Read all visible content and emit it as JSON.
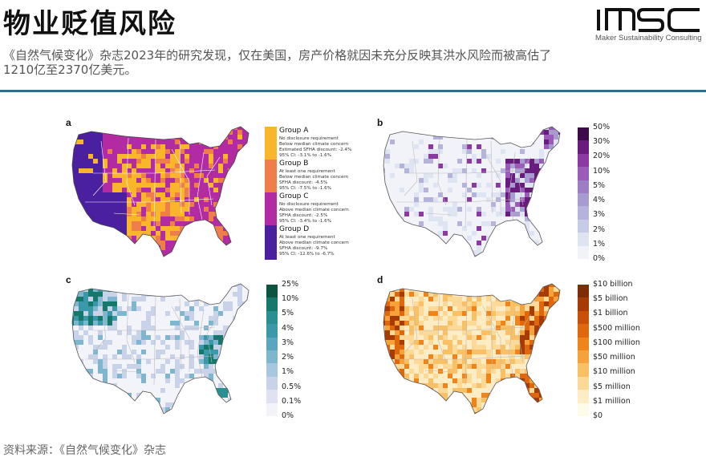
{
  "title": "物业贬值风险",
  "brand": {
    "logo_text": "MSC",
    "tagline": "Maker Sustainability Consulting"
  },
  "subtitle": "《自然气候变化》杂志2023年的研究发现，仅在美国，房产价格就因未充分反映其洪水风险而被高估了1210亿至2370亿美元。",
  "source": "资料来源：《自然气候变化》杂志",
  "panels": {
    "a": {
      "letter": "a",
      "groups": [
        {
          "name": "Group A",
          "color": "#f9b62b",
          "lines": [
            "No disclosure requirement",
            "Below median climate concern",
            "Estimated SFHA discount: -2.4%",
            "95% CI: -3.1% to -1.6%"
          ]
        },
        {
          "name": "Group B",
          "color": "#f07e4a",
          "lines": [
            "At least one requirement",
            "Below median climate concern",
            "SFHA discount: -4.5%",
            "95% CI: -7.5% to -1.6%"
          ]
        },
        {
          "name": "Group C",
          "color": "#b32ba3",
          "lines": [
            "No disclosure requirement",
            "Above median climate concern",
            "SFHA discount: -2.5%",
            "95% CI: -3.4% to -1.6%"
          ]
        },
        {
          "name": "Group D",
          "color": "#4a1fa0",
          "lines": [
            "At least one requirement",
            "Above median climate concern",
            "SFHA discount: -9.7%",
            "95% CI: -12.6% to -6.7%"
          ]
        }
      ]
    },
    "b": {
      "letter": "b",
      "ticks": [
        "50%",
        "30%",
        "20%",
        "10%",
        "5%",
        "4%",
        "3%",
        "2%",
        "1%",
        "0%"
      ],
      "colors": [
        "#3f0a4a",
        "#6a1b7e",
        "#8a3aa0",
        "#9b5bb8",
        "#9d7ec4",
        "#a79bd0",
        "#b5b3dc",
        "#c6cbe6",
        "#dfe4f2",
        "#f2f3f9"
      ]
    },
    "c": {
      "letter": "c",
      "ticks": [
        "25%",
        "10%",
        "5%",
        "4%",
        "3%",
        "2%",
        "1%",
        "0.5%",
        "0.1%",
        "0%"
      ],
      "colors": [
        "#0b5540",
        "#14796b",
        "#2a8f93",
        "#3b98a8",
        "#5aa6bf",
        "#7fb6cf",
        "#a7c6df",
        "#c8d3ea",
        "#e0e2f3",
        "#f3f3fa"
      ]
    },
    "d": {
      "letter": "d",
      "ticks": [
        "$10 billion",
        "$5 billion",
        "$1 billion",
        "$500 million",
        "$100 million",
        "$50 million",
        "$10 million",
        "$5 million",
        "$1 million",
        "$0"
      ],
      "colors": [
        "#7f2d04",
        "#a63c04",
        "#c95006",
        "#e0680c",
        "#ef841b",
        "#f5a23a",
        "#f9c066",
        "#fcd996",
        "#feecc4",
        "#fffbe9"
      ]
    }
  }
}
